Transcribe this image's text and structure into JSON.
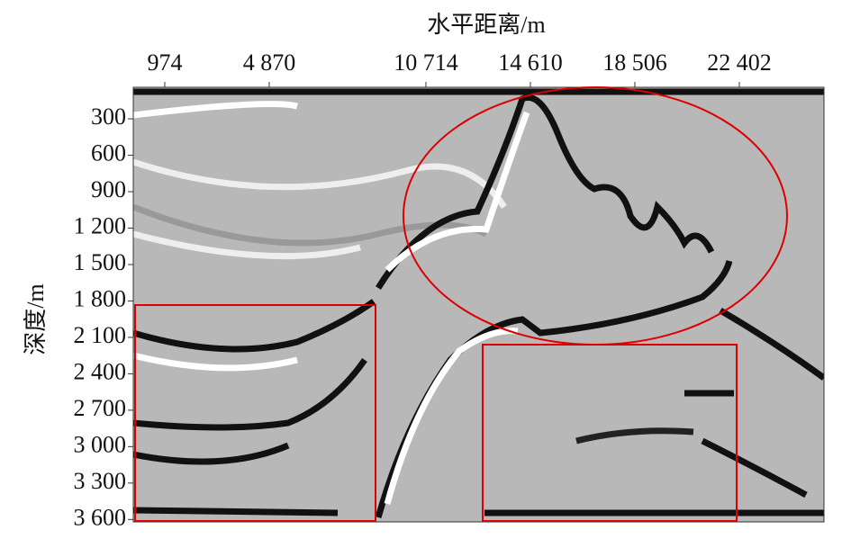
{
  "chart_data": {
    "type": "seismic-section",
    "xlabel": "水平距离/m",
    "ylabel": "深度/m",
    "xlim": [
      -200,
      25560
    ],
    "ylim": [
      40,
      3620
    ],
    "xticks": [
      974,
      {
        "value": 4870,
        "label": "4 870"
      },
      {
        "value": 10714,
        "label": "10 714"
      },
      {
        "value": 14610,
        "label": "14 610"
      },
      {
        "value": 18506,
        "label": "18 506"
      },
      {
        "value": 22402,
        "label": "22 402"
      }
    ],
    "yticks": [
      300,
      600,
      900,
      {
        "value": 1200,
        "label": "1 200"
      },
      {
        "value": 1500,
        "label": "1 500"
      },
      {
        "value": 1800,
        "label": "1 800"
      },
      {
        "value": 2100,
        "label": "2 100"
      },
      {
        "value": 2400,
        "label": "2 400"
      },
      {
        "value": 2700,
        "label": "2 700"
      },
      {
        "value": 3000,
        "label": "3 000"
      },
      {
        "value": 3300,
        "label": "3 300"
      },
      {
        "value": 3600,
        "label": "3 600"
      }
    ],
    "y_inverted": true
  }
}
